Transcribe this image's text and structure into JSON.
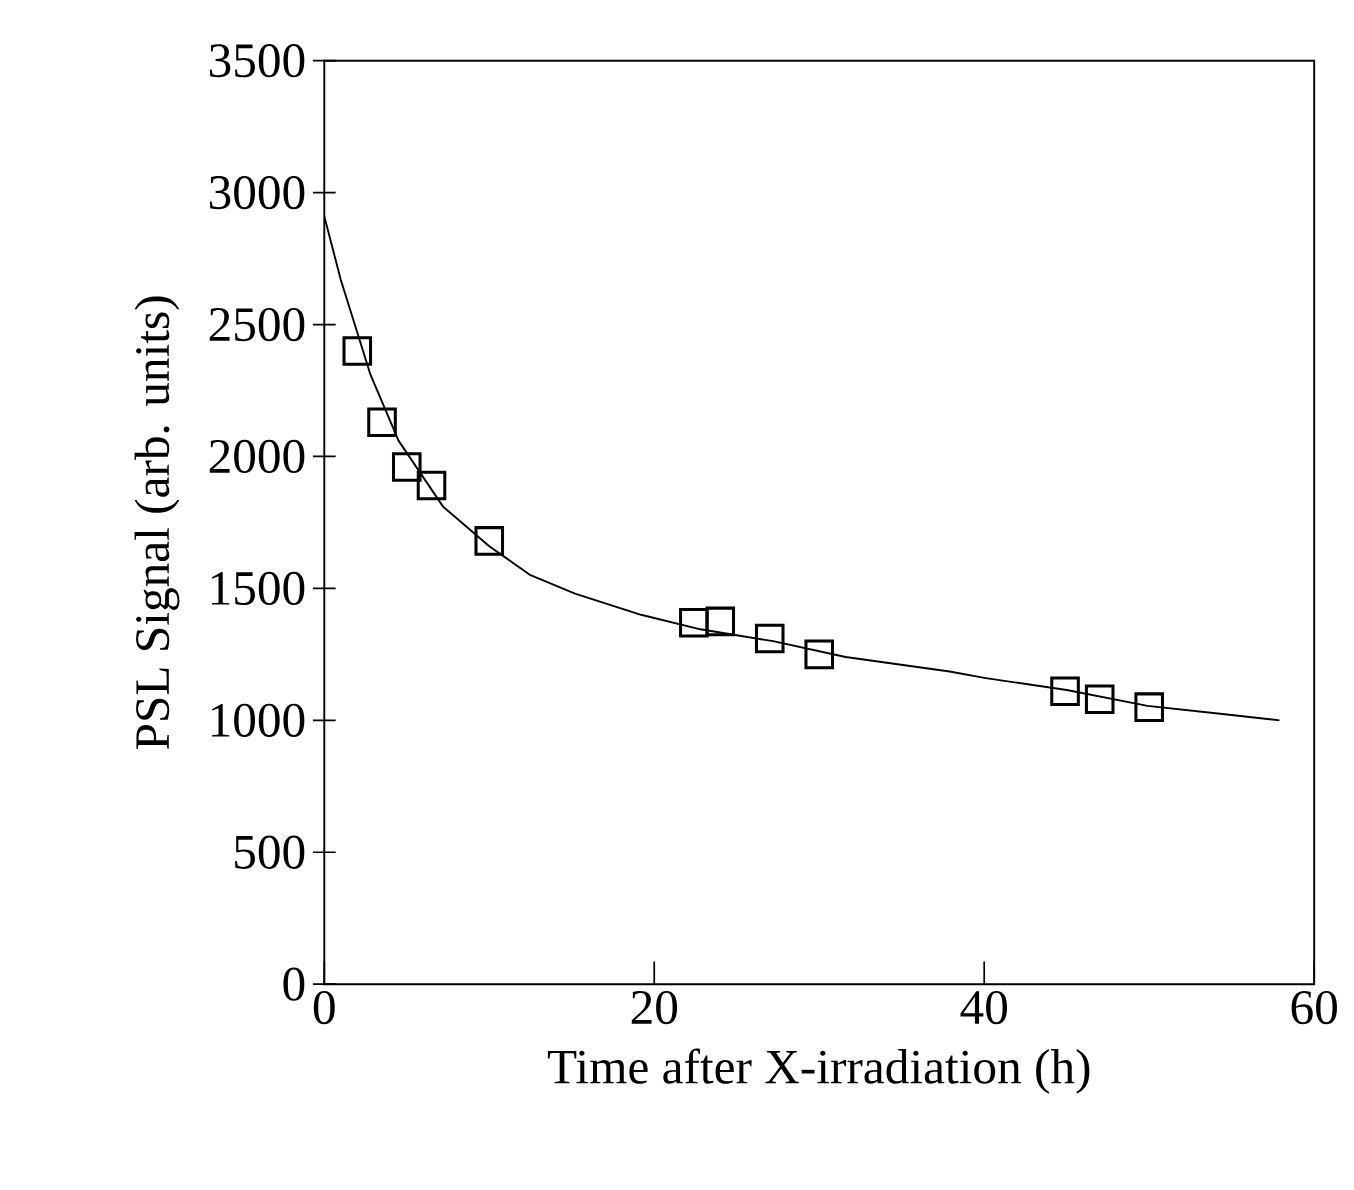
{
  "chart_data": {
    "type": "scatter",
    "xlabel": "Time after X-irradiation  (h)",
    "ylabel": "PSL Signal  (arb. units)",
    "xlim": [
      0,
      60
    ],
    "ylim": [
      0,
      3500
    ],
    "xticks": [
      0,
      20,
      40,
      60
    ],
    "yticks": [
      0,
      500,
      1000,
      1500,
      2000,
      2500,
      3000,
      3500
    ],
    "marker": "square",
    "grid": false,
    "series": [
      {
        "color": "#000000",
        "x": [
          2,
          3.5,
          5,
          6.5,
          10,
          22.4,
          24,
          27,
          30,
          44.9,
          47,
          50
        ],
        "values": [
          2400,
          2130,
          1960,
          1890,
          1680,
          1370,
          1375,
          1310,
          1250,
          1110,
          1080,
          1050
        ]
      },
      {
        "type": "line",
        "color": "#000000",
        "marker": "none",
        "x": [
          0,
          1,
          2.8,
          4.5,
          7.2,
          10,
          12.5,
          15.2,
          19.2,
          22.8,
          27.2,
          31.6,
          37.9,
          40.1,
          45,
          49.9,
          54.3,
          57.9
        ],
        "values": [
          2910,
          2670,
          2310,
          2060,
          1810,
          1660,
          1550,
          1480,
          1400,
          1345,
          1300,
          1240,
          1185,
          1160,
          1115,
          1055,
          1025,
          1000
        ]
      }
    ]
  }
}
